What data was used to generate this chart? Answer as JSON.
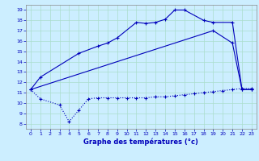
{
  "xlabel": "Graphe des températures (°c)",
  "xlim": [
    -0.5,
    23.5
  ],
  "ylim": [
    7.5,
    19.5
  ],
  "yticks": [
    8,
    9,
    10,
    11,
    12,
    13,
    14,
    15,
    16,
    17,
    18,
    19
  ],
  "xticks": [
    0,
    1,
    2,
    3,
    4,
    5,
    6,
    7,
    8,
    9,
    10,
    11,
    12,
    13,
    14,
    15,
    16,
    17,
    18,
    19,
    20,
    21,
    22,
    23
  ],
  "bg_color": "#cceeff",
  "line_color": "#0000bb",
  "grid_color": "#aaddcc",
  "curve1_x": [
    0,
    1,
    5,
    7,
    8,
    9,
    11,
    12,
    13,
    14,
    15,
    16,
    18,
    19,
    21,
    22,
    23
  ],
  "curve1_y": [
    11.3,
    12.5,
    14.8,
    15.5,
    15.8,
    16.3,
    17.8,
    17.7,
    17.8,
    18.1,
    19.0,
    19.0,
    18.0,
    17.8,
    17.8,
    11.3,
    11.3
  ],
  "curve2_x": [
    0,
    19,
    21,
    22,
    23
  ],
  "curve2_y": [
    11.3,
    17.0,
    15.8,
    11.3,
    11.3
  ],
  "curve3_x": [
    0,
    1,
    3,
    4,
    5,
    6,
    7,
    8,
    9,
    10,
    11,
    12,
    13,
    14,
    15,
    16,
    17,
    18,
    19,
    20,
    21,
    22,
    23
  ],
  "curve3_y": [
    11.3,
    10.4,
    9.8,
    8.2,
    9.3,
    10.4,
    10.5,
    10.5,
    10.5,
    10.5,
    10.5,
    10.5,
    10.6,
    10.6,
    10.7,
    10.8,
    10.9,
    11.0,
    11.1,
    11.2,
    11.3,
    11.4,
    11.4
  ]
}
